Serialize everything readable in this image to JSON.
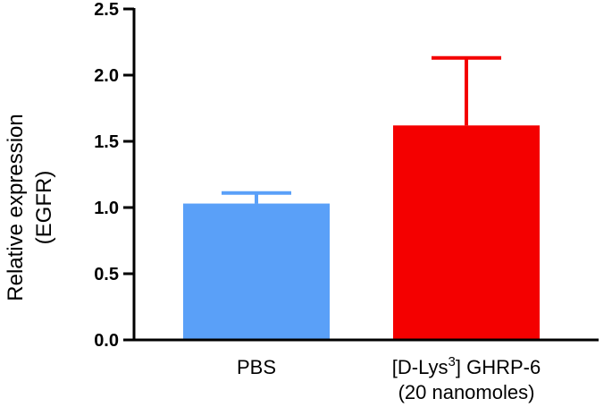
{
  "chart_data": {
    "type": "bar",
    "ylabel_lines": [
      "Relative expression",
      "(EGFR)"
    ],
    "ylim": [
      0,
      2.5
    ],
    "yticks": [
      "0.0",
      "0.5",
      "1.0",
      "1.5",
      "2.0",
      "2.5"
    ],
    "grid": false,
    "categories": [
      {
        "lines": [
          "PBS"
        ],
        "superscript": null
      },
      {
        "lines": [
          "[D-Lys",
          "] GHRP-6",
          "(20 nanomoles)"
        ],
        "superscript": "3"
      }
    ],
    "values": [
      1.03,
      1.62
    ],
    "errors": [
      0.08,
      0.51
    ],
    "colors": [
      "#5aa0f8",
      "#f40000"
    ]
  }
}
